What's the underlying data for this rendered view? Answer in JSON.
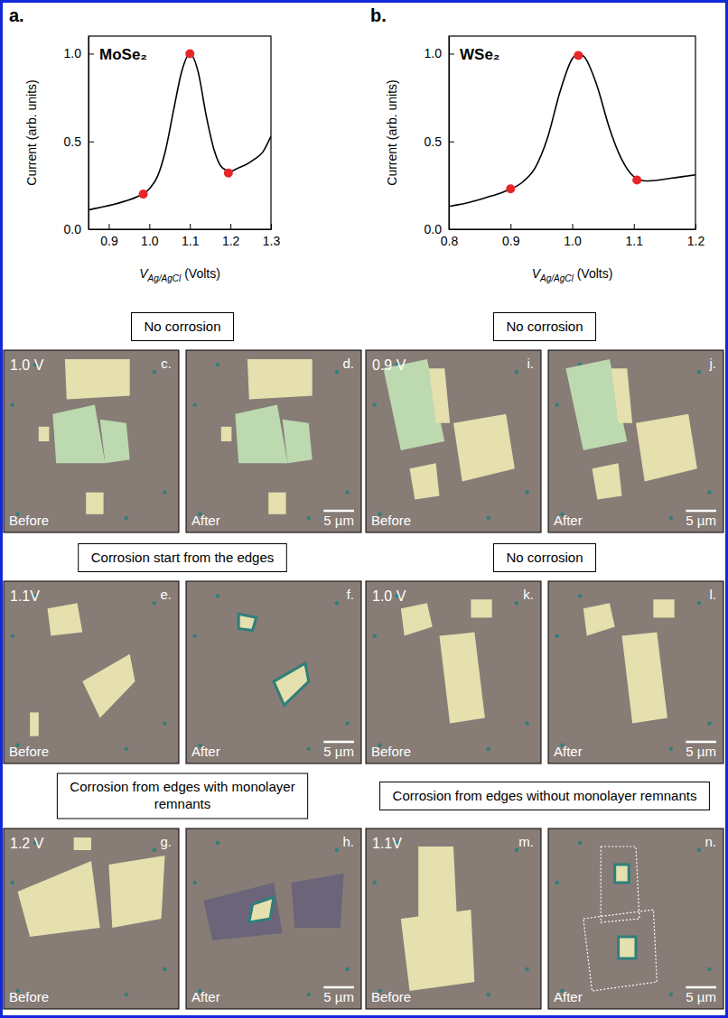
{
  "chart_data": [
    {
      "type": "line",
      "panel_label": "a.",
      "title": "MoSe₂",
      "x_label": "V",
      "x_label_subscript": "Ag/AgCl",
      "x_label_unit": "(Volts)",
      "y_label": "Current (arb. units)",
      "xlim": [
        0.85,
        1.3
      ],
      "xticks": [
        0.9,
        {
          "value": 1,
          "label": "1.0"
        },
        1.1,
        1.2,
        1.3
      ],
      "ylim": [
        0,
        1.1
      ],
      "yticks": [
        {
          "value": 0,
          "label": "0.0"
        },
        0.5,
        {
          "value": 1,
          "label": "1.0"
        }
      ],
      "series": [
        {
          "type": "line",
          "color": "#000000",
          "x": [
            0.85,
            0.88,
            0.91,
            0.94,
            0.97,
            1.0,
            1.02,
            1.04,
            1.06,
            1.08,
            1.1,
            1.12,
            1.14,
            1.16,
            1.18,
            1.2,
            1.22,
            1.24,
            1.26,
            1.28,
            1.3
          ],
          "values": [
            0.11,
            0.125,
            0.14,
            0.16,
            0.185,
            0.23,
            0.3,
            0.45,
            0.68,
            0.9,
            1.0,
            0.9,
            0.65,
            0.45,
            0.35,
            0.33,
            0.35,
            0.37,
            0.4,
            0.44,
            0.53
          ]
        },
        {
          "type": "scatter",
          "color": "#e8262a",
          "marker": "circle",
          "x": [
            0.985,
            1.1,
            1.195
          ],
          "values": [
            0.2,
            1.0,
            0.32
          ]
        }
      ]
    },
    {
      "type": "line",
      "panel_label": "b.",
      "title": "WSe₂",
      "x_label": "V",
      "x_label_subscript": "Ag/AgCl",
      "x_label_unit": "(Volts)",
      "y_label": "Current (arb. units)",
      "xlim": [
        0.8,
        1.2
      ],
      "xticks": [
        0.8,
        0.9,
        {
          "value": 1,
          "label": "1.0"
        },
        1.1,
        1.2
      ],
      "ylim": [
        0,
        1.1
      ],
      "yticks": [
        {
          "value": 0,
          "label": "0.0"
        },
        0.5,
        {
          "value": 1,
          "label": "1.0"
        }
      ],
      "series": [
        {
          "type": "line",
          "color": "#000000",
          "x": [
            0.8,
            0.83,
            0.86,
            0.89,
            0.92,
            0.94,
            0.96,
            0.98,
            1.0,
            1.01,
            1.02,
            1.04,
            1.06,
            1.08,
            1.1,
            1.12,
            1.14,
            1.16,
            1.18,
            1.2
          ],
          "values": [
            0.13,
            0.15,
            0.18,
            0.215,
            0.27,
            0.35,
            0.52,
            0.78,
            0.97,
            1.0,
            0.98,
            0.82,
            0.58,
            0.4,
            0.3,
            0.275,
            0.28,
            0.29,
            0.3,
            0.31
          ]
        },
        {
          "type": "scatter",
          "color": "#e8262a",
          "marker": "circle",
          "x": [
            0.9,
            1.01,
            1.105
          ],
          "values": [
            0.23,
            0.99,
            0.28
          ]
        }
      ]
    }
  ],
  "micrograph_columns": [
    [
      {
        "heading": "No corrosion",
        "voltage": "1.0 V",
        "before": {
          "letter": "c.",
          "caption": "Before"
        },
        "after": {
          "letter": "d.",
          "caption": "After",
          "scale_bar": "5 µm"
        }
      },
      {
        "heading": "Corrosion start from the edges",
        "voltage": "1.1V",
        "before": {
          "letter": "e.",
          "caption": "Before"
        },
        "after": {
          "letter": "f.",
          "caption": "After",
          "scale_bar": "5 µm"
        }
      },
      {
        "heading": "Corrosion from edges with monolayer remnants",
        "voltage": "1.2 V",
        "before": {
          "letter": "g.",
          "caption": "Before"
        },
        "after": {
          "letter": "h.",
          "caption": "After",
          "scale_bar": "5 µm"
        }
      }
    ],
    [
      {
        "heading": "No corrosion",
        "voltage": "0.9 V",
        "before": {
          "letter": "i.",
          "caption": "Before"
        },
        "after": {
          "letter": "j.",
          "caption": "After",
          "scale_bar": "5 µm"
        }
      },
      {
        "heading": "No corrosion",
        "voltage": "1.0 V",
        "before": {
          "letter": "k.",
          "caption": "Before"
        },
        "after": {
          "letter": "l.",
          "caption": "After",
          "scale_bar": "5 µm"
        }
      },
      {
        "heading": "Corrosion from edges without monolayer remnants",
        "voltage": "1.1V",
        "before": {
          "letter": "m.",
          "caption": "Before"
        },
        "after": {
          "letter": "n.",
          "caption": "After",
          "scale_bar": "5 µm"
        }
      }
    ]
  ]
}
